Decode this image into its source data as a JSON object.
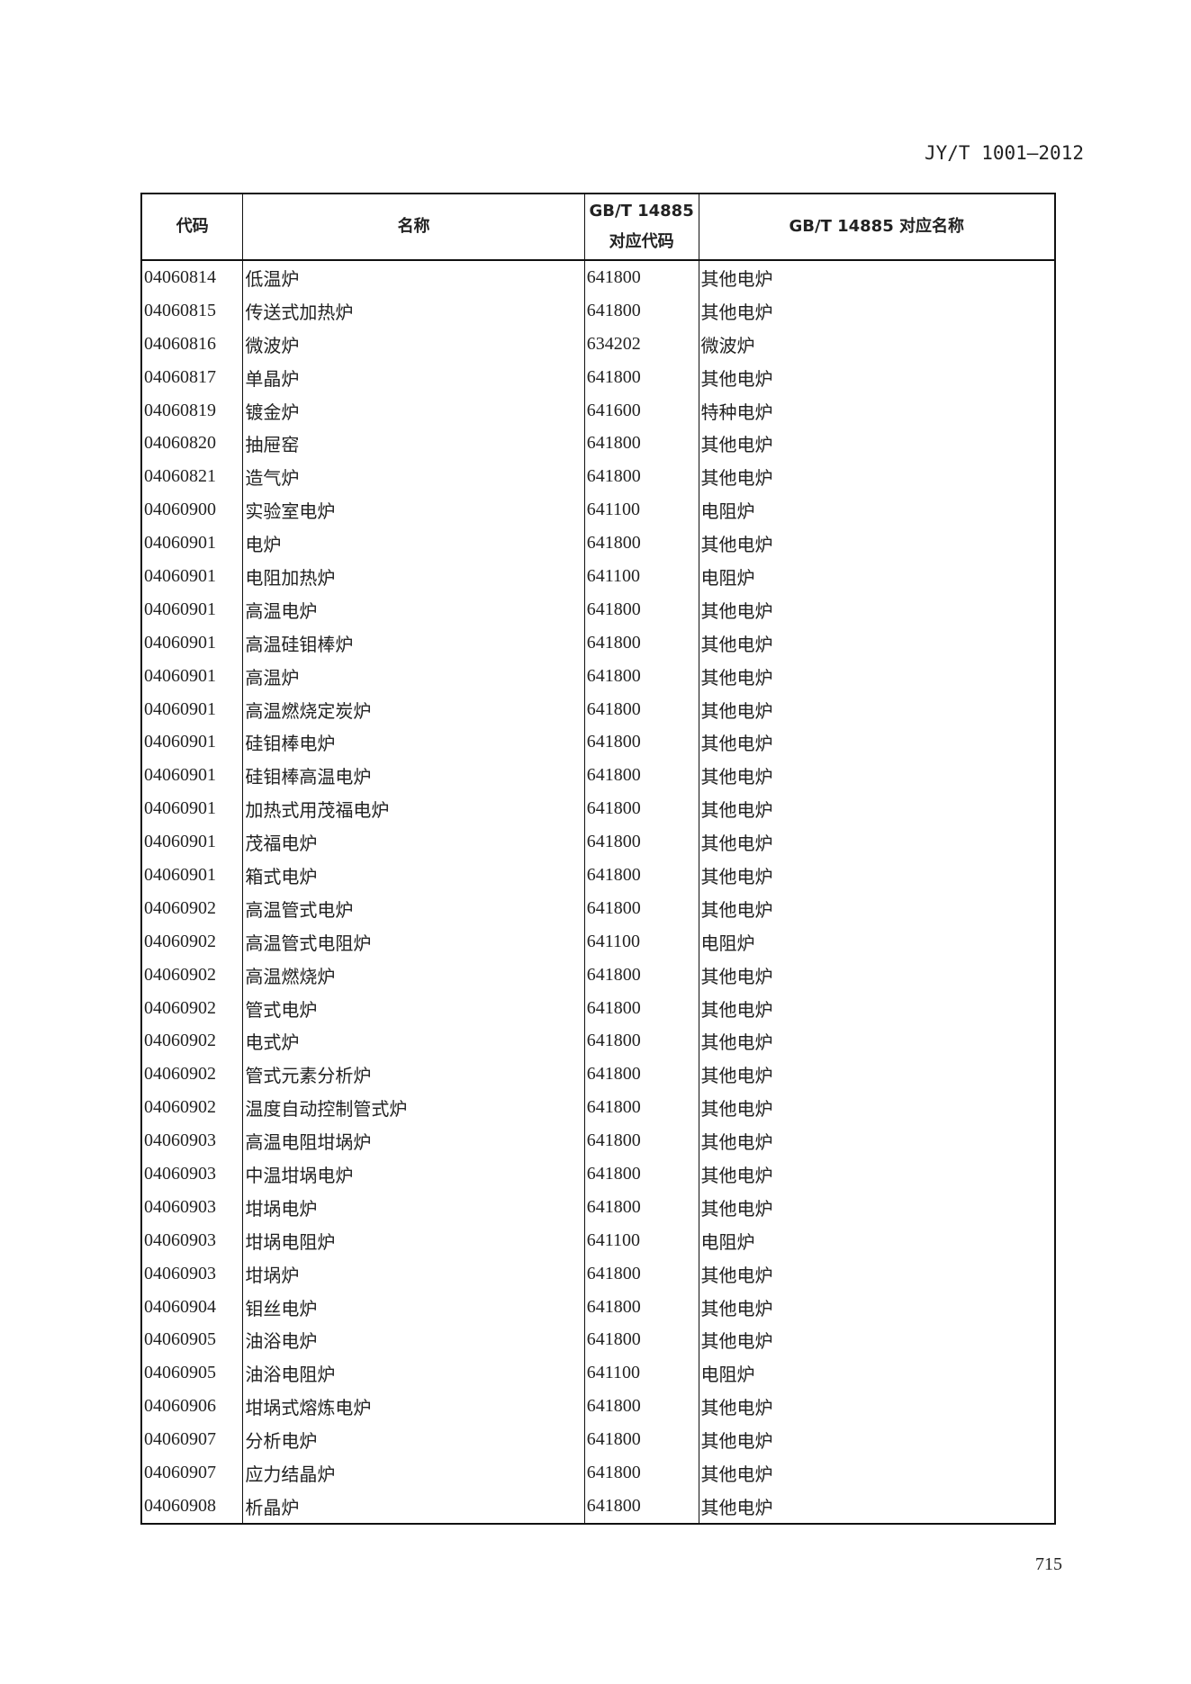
{
  "header": {
    "standard_number": "JY/T 1001—2012"
  },
  "table": {
    "columns": [
      "代码",
      "名称",
      "GB/T 14885\n对应代码",
      "GB/T 14885 对应名称"
    ],
    "columns_lines": {
      "c3_line1": "GB/T 14885",
      "c3_line2": "对应代码"
    },
    "rows": [
      [
        "04060814",
        "低温炉",
        "641800",
        "其他电炉"
      ],
      [
        "04060815",
        "传送式加热炉",
        "641800",
        "其他电炉"
      ],
      [
        "04060816",
        "微波炉",
        "634202",
        "微波炉"
      ],
      [
        "04060817",
        "单晶炉",
        "641800",
        "其他电炉"
      ],
      [
        "04060819",
        "镀金炉",
        "641600",
        "特种电炉"
      ],
      [
        "04060820",
        "抽屉窑",
        "641800",
        "其他电炉"
      ],
      [
        "04060821",
        "造气炉",
        "641800",
        "其他电炉"
      ],
      [
        "04060900",
        "实验室电炉",
        "641100",
        "电阻炉"
      ],
      [
        "04060901",
        "电炉",
        "641800",
        "其他电炉"
      ],
      [
        "04060901",
        "电阻加热炉",
        "641100",
        "电阻炉"
      ],
      [
        "04060901",
        "高温电炉",
        "641800",
        "其他电炉"
      ],
      [
        "04060901",
        "高温硅钼棒炉",
        "641800",
        "其他电炉"
      ],
      [
        "04060901",
        "高温炉",
        "641800",
        "其他电炉"
      ],
      [
        "04060901",
        "高温燃烧定炭炉",
        "641800",
        "其他电炉"
      ],
      [
        "04060901",
        "硅钼棒电炉",
        "641800",
        "其他电炉"
      ],
      [
        "04060901",
        "硅钼棒高温电炉",
        "641800",
        "其他电炉"
      ],
      [
        "04060901",
        "加热式用茂福电炉",
        "641800",
        "其他电炉"
      ],
      [
        "04060901",
        "茂福电炉",
        "641800",
        "其他电炉"
      ],
      [
        "04060901",
        "箱式电炉",
        "641800",
        "其他电炉"
      ],
      [
        "04060902",
        "高温管式电炉",
        "641800",
        "其他电炉"
      ],
      [
        "04060902",
        "高温管式电阻炉",
        "641100",
        "电阻炉"
      ],
      [
        "04060902",
        "高温燃烧炉",
        "641800",
        "其他电炉"
      ],
      [
        "04060902",
        "管式电炉",
        "641800",
        "其他电炉"
      ],
      [
        "04060902",
        "电式炉",
        "641800",
        "其他电炉"
      ],
      [
        "04060902",
        "管式元素分析炉",
        "641800",
        "其他电炉"
      ],
      [
        "04060902",
        "温度自动控制管式炉",
        "641800",
        "其他电炉"
      ],
      [
        "04060903",
        "高温电阻坩埚炉",
        "641800",
        "其他电炉"
      ],
      [
        "04060903",
        "中温坩埚电炉",
        "641800",
        "其他电炉"
      ],
      [
        "04060903",
        "坩埚电炉",
        "641800",
        "其他电炉"
      ],
      [
        "04060903",
        "坩埚电阻炉",
        "641100",
        "电阻炉"
      ],
      [
        "04060903",
        "坩埚炉",
        "641800",
        "其他电炉"
      ],
      [
        "04060904",
        "钼丝电炉",
        "641800",
        "其他电炉"
      ],
      [
        "04060905",
        "油浴电炉",
        "641800",
        "其他电炉"
      ],
      [
        "04060905",
        "油浴电阻炉",
        "641100",
        "电阻炉"
      ],
      [
        "04060906",
        "坩埚式熔炼电炉",
        "641800",
        "其他电炉"
      ],
      [
        "04060907",
        "分析电炉",
        "641800",
        "其他电炉"
      ],
      [
        "04060907",
        "应力结晶炉",
        "641800",
        "其他电炉"
      ],
      [
        "04060908",
        "析晶炉",
        "641800",
        "其他电炉"
      ]
    ]
  },
  "footer": {
    "page_number": "715"
  }
}
